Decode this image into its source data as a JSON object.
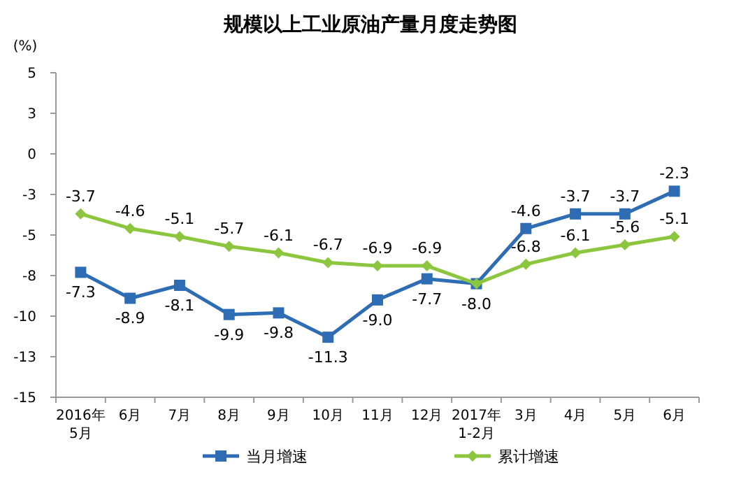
{
  "chart_data": {
    "type": "line",
    "title": "规模以上工业原油产量月度走势图",
    "ylabel": "(%)",
    "categories": [
      "2016年\n5月",
      "6月",
      "7月",
      "8月",
      "9月",
      "10月",
      "11月",
      "12月",
      "2017年\n1-2月",
      "3月",
      "4月",
      "5月",
      "6月"
    ],
    "series": [
      {
        "name": "当月增速",
        "color": "#2e6db4",
        "marker": "square",
        "values": [
          -7.3,
          -8.9,
          -8.1,
          -9.9,
          -9.8,
          -11.3,
          -9.0,
          -7.7,
          -8.0,
          -4.6,
          -3.7,
          -3.7,
          -2.3
        ],
        "value_labels": [
          "-7.3",
          "-8.9",
          "-8.1",
          "-9.9",
          "-9.8",
          "-11.3",
          "-9.0",
          "-7.7",
          "-8.0",
          "-4.6",
          "-3.7",
          "-3.7",
          "-2.3"
        ]
      },
      {
        "name": "累计增速",
        "color": "#8cc63f",
        "marker": "diamond",
        "values": [
          -3.7,
          -4.6,
          -5.1,
          -5.7,
          -6.1,
          -6.7,
          -6.9,
          -6.9,
          -8.0,
          -6.8,
          -6.1,
          -5.6,
          -5.1
        ],
        "value_labels": [
          "-3.7",
          "-4.6",
          "-5.1",
          "-5.7",
          "-6.1",
          "-6.7",
          "-6.9",
          "-6.9",
          null,
          "-6.8",
          "-6.1",
          "-5.6",
          "-5.1"
        ]
      }
    ],
    "ylim": [
      -15,
      5
    ],
    "yticks": [
      5,
      {
        "value": 2.5,
        "label": "3"
      },
      0,
      {
        "value": -2.5,
        "label": "-3"
      },
      -5,
      {
        "value": -7.5,
        "label": "-8"
      },
      -10,
      {
        "value": -12.5,
        "label": "-13"
      },
      -15
    ],
    "legend": "bottom",
    "grid": false
  }
}
